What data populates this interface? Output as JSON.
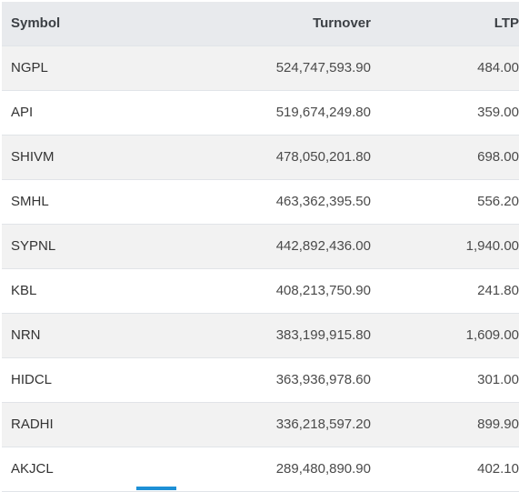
{
  "table": {
    "headers": {
      "symbol": "Symbol",
      "turnover": "Turnover",
      "ltp": "LTP"
    },
    "rows": [
      {
        "symbol": "NGPL",
        "turnover": "524,747,593.90",
        "ltp": "484.00"
      },
      {
        "symbol": "API",
        "turnover": "519,674,249.80",
        "ltp": "359.00"
      },
      {
        "symbol": "SHIVM",
        "turnover": "478,050,201.80",
        "ltp": "698.00"
      },
      {
        "symbol": "SMHL",
        "turnover": "463,362,395.50",
        "ltp": "556.20"
      },
      {
        "symbol": "SYPNL",
        "turnover": "442,892,436.00",
        "ltp": "1,940.00"
      },
      {
        "symbol": "KBL",
        "turnover": "408,213,750.90",
        "ltp": "241.80"
      },
      {
        "symbol": "NRN",
        "turnover": "383,199,915.80",
        "ltp": "1,609.00"
      },
      {
        "symbol": "HIDCL",
        "turnover": "363,936,978.60",
        "ltp": "301.00"
      },
      {
        "symbol": "RADHI",
        "turnover": "336,218,597.20",
        "ltp": "899.90"
      },
      {
        "symbol": "AKJCL",
        "turnover": "289,480,890.90",
        "ltp": "402.10"
      }
    ]
  },
  "colors": {
    "header_background": "#e8eaed",
    "striped_row": "#f2f2f2",
    "scroll_indicator": "#1e90d6"
  }
}
